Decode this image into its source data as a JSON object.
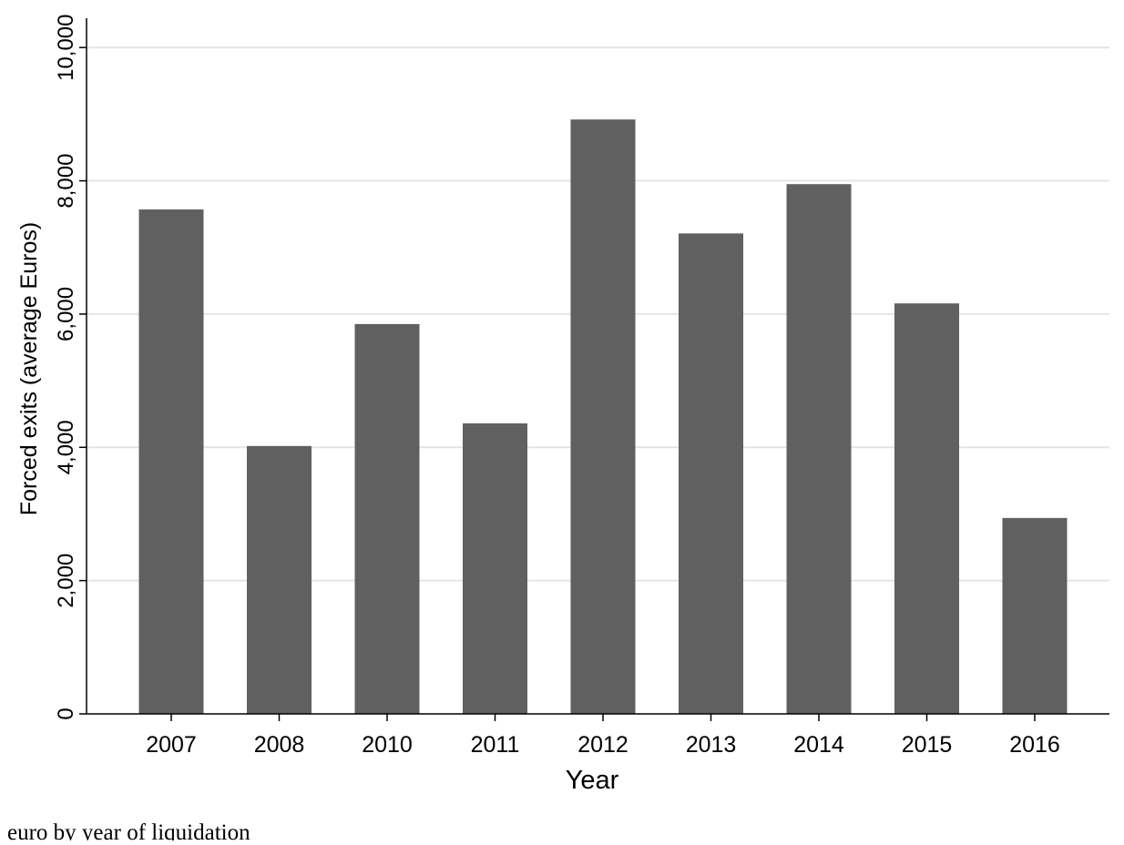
{
  "chart_data": {
    "type": "bar",
    "xlabel": "Year",
    "ylabel": "Forced exits (average Euros)",
    "categories": [
      "2007",
      "2008",
      "2010",
      "2011",
      "2012",
      "2013",
      "2014",
      "2015",
      "2016"
    ],
    "values": [
      7570,
      4020,
      5850,
      4360,
      8920,
      7210,
      7950,
      6160,
      2940
    ],
    "color": "#606060",
    "ylim": [
      0,
      10440
    ],
    "yticks": [
      0,
      {
        "value": 2000,
        "label": "2,000"
      },
      {
        "value": 4000,
        "label": "4,000"
      },
      {
        "value": 6000,
        "label": "6,000"
      },
      {
        "value": 8000,
        "label": "8,000"
      },
      {
        "value": 10000,
        "label": "10,000"
      }
    ],
    "grid": true
  },
  "caption": "euro by year of liquidation"
}
